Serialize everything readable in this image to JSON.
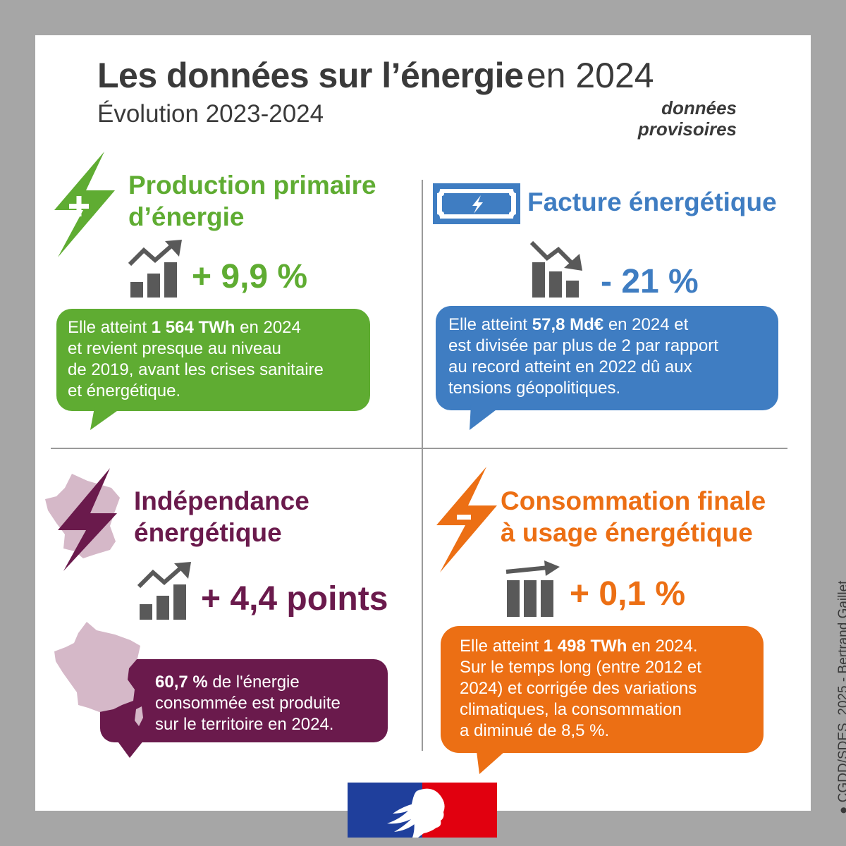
{
  "title": {
    "bold": "Les données sur l’énergie",
    "light": "en 2024"
  },
  "subtitle": "Évolution 2023-2024",
  "provisional": {
    "line1": "données",
    "line2": "provisoires"
  },
  "colors": {
    "green": "#5fac32",
    "blue": "#3f7dc2",
    "purple": "#6a1a4c",
    "orange": "#ec6f14",
    "gray": "#595959",
    "france_light": "#d5b8c8"
  },
  "production": {
    "heading_line1": "Production primaire",
    "heading_line2": "d’énergie",
    "stat": "+ 9,9 %",
    "text_prefix": "Elle atteint",
    "text_bold": "1 564 TWh",
    "text_suffix": "en 2024",
    "text_rest": [
      "et revient presque au niveau",
      "de 2019, avant les crises sanitaire",
      "et énergétique."
    ],
    "icon": "lightning-plus-icon",
    "trend_icon": "chart-up-icon"
  },
  "facture": {
    "heading": "Facture énergétique",
    "stat": "- 21 %",
    "text_prefix": "Elle atteint",
    "text_bold": "57,8 Md€",
    "text_suffix": "en 2024 et",
    "text_rest": [
      "est divisée par plus de 2 par rapport",
      "au record atteint en 2022 dû aux",
      "tensions géopolitiques."
    ],
    "icon": "bill-lightning-icon",
    "trend_icon": "chart-down-icon"
  },
  "independance": {
    "heading_line1": "Indépendance",
    "heading_line2": "énergétique",
    "stat": "+ 4,4 points",
    "text_bold": "60,7 %",
    "text_suffix": "de l'énergie",
    "text_rest": [
      "consommée est produite",
      "sur le territoire en 2024."
    ],
    "icon": "france-lightning-icon",
    "trend_icon": "chart-up-icon"
  },
  "consommation": {
    "heading_line1": "Consommation finale",
    "heading_line2": "à usage énergétique",
    "stat": "+ 0,1 %",
    "text_prefix": "Elle atteint",
    "text_bold": "1 498 TWh",
    "text_suffix": "en 2024.",
    "text_rest": [
      "Sur le temps long (entre 2012 et",
      "2024) et corrigée des variations",
      "climatiques, la consommation",
      "a diminué de 8,5 %."
    ],
    "icon": "lightning-minus-icon",
    "trend_icon": "chart-flat-icon"
  },
  "credit": "● CGDD/SDES, 2025 - Bertrand Gaillet"
}
